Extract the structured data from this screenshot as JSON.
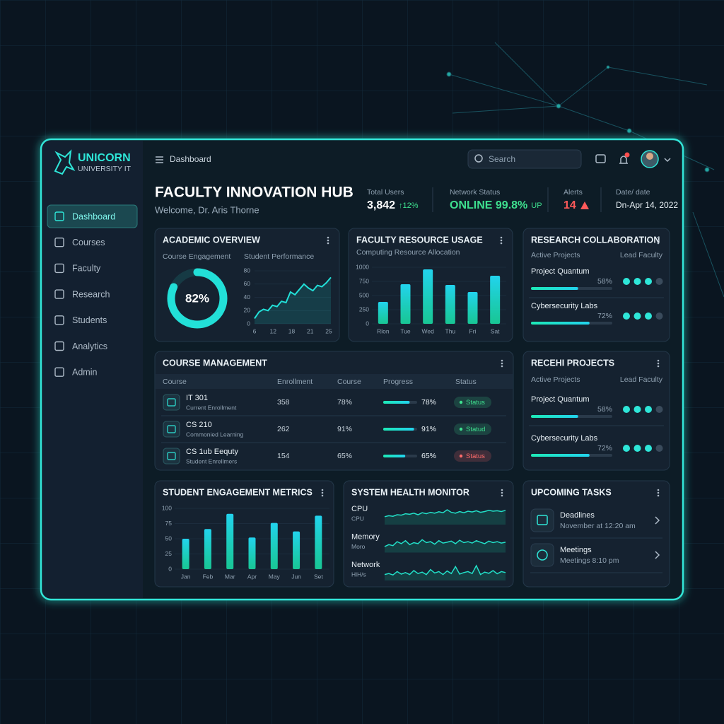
{
  "brand": {
    "name": "UNICORN",
    "subtitle": "UNIVERSITY IT"
  },
  "nav": {
    "items": [
      "Dashboard",
      "Courses",
      "Faculty",
      "Research",
      "Students",
      "Analytics",
      "Admin"
    ],
    "active": "Dashboard"
  },
  "topbar": {
    "breadcrumb": "Dashboard",
    "search_placeholder": "Search"
  },
  "header": {
    "title": "FACULTY INNOVATION HUB",
    "welcome": "Welcome, Dr. Aris Thorne"
  },
  "stats": [
    {
      "label": "Total Users",
      "value": "3,842",
      "change": "↑12%",
      "value_color": "#ffffff",
      "change_color": "#3ee08f"
    },
    {
      "label": "Network Status",
      "value": "ONLINE 99.8%",
      "change": "UP",
      "value_color": "#3ee08f",
      "change_color": "#3ee08f"
    },
    {
      "label": "Alerts",
      "value": "14",
      "value_color": "#ff5a5a"
    },
    {
      "label": "Date/ date",
      "value": "Dn-Apr 14, 2022",
      "value_color": "#e9f1f6"
    }
  ],
  "academic_overview": {
    "title": "ACADEMIC OVERVIEW",
    "engagement": {
      "type": "donut",
      "label": "Course Engagement",
      "value": 82,
      "value_label": "82%",
      "color": "#22e0d8"
    },
    "performance": {
      "type": "line",
      "label": "Student Performance",
      "categories": [
        "6",
        "12",
        "18",
        "21",
        "25"
      ],
      "values": [
        8,
        18,
        22,
        20,
        28,
        26,
        34,
        32,
        48,
        44,
        52,
        60,
        54,
        50,
        58,
        56,
        62,
        70
      ],
      "ylim": [
        0,
        80
      ],
      "yticks": [
        0,
        20,
        40,
        60,
        80
      ],
      "color": "#22e0d8"
    }
  },
  "faculty_resource": {
    "title": "FACULTY RESOURCE USAGE",
    "chart": {
      "type": "bar",
      "subtitle": "Computing Resource Allocation",
      "categories": [
        "Rlon",
        "Tue",
        "Wed",
        "Thu",
        "Fri",
        "Sat"
      ],
      "values": [
        387,
        700,
        962,
        687,
        562,
        850
      ],
      "ylim": [
        0,
        1000
      ],
      "yticks": [
        0,
        250,
        500,
        750,
        1000
      ],
      "color": "#22d3ee"
    }
  },
  "research": {
    "title": "RESEARCH COLLABORATION",
    "columns": [
      "Active Projects",
      "Lead Faculty"
    ],
    "items": [
      {
        "name": "Project Quantum",
        "progress": 58,
        "progress_label": "58%"
      },
      {
        "name": "Cybersecurity Labs",
        "progress": 72,
        "progress_label": "72%"
      }
    ]
  },
  "course_management": {
    "title": "COURSE MANAGEMENT",
    "columns": [
      "Course",
      "Enrollment",
      "Course",
      "Progress",
      "Status"
    ],
    "rows": [
      {
        "code": "IT 301",
        "desc": "Current Enrollment",
        "enrollment": "358",
        "course": "78%",
        "progress": 78,
        "progress_label": "78%",
        "status": "Status",
        "status_color": "#3ee08f"
      },
      {
        "code": "CS 210",
        "desc": "Commonied Learning",
        "enrollment": "262",
        "course": "91%",
        "progress": 91,
        "progress_label": "91%",
        "status": "Statud",
        "status_color": "#3ee08f"
      },
      {
        "code": "CS 1ub Eequty",
        "desc": "Student Enrellmers",
        "enrollment": "154",
        "course": "65%",
        "progress": 65,
        "progress_label": "65%",
        "status": "Status",
        "status_color": "#ff6b6b"
      }
    ]
  },
  "recent_projects": {
    "title": "RECEHI PROJECTS",
    "columns": [
      "Active Projects",
      "Lead Faculty"
    ],
    "items": [
      {
        "name": "Project Quantum",
        "progress": 58,
        "progress_label": "58%"
      },
      {
        "name": "Cybersecurity Labs",
        "progress": 72,
        "progress_label": "72%"
      }
    ]
  },
  "student_engagement": {
    "title": "STUDENT ENGAGEMENT METRICS",
    "chart": {
      "type": "bar",
      "categories": [
        "Jan",
        "Feb",
        "Mar",
        "Apr",
        "May",
        "Jun",
        "Set"
      ],
      "values": [
        50,
        66,
        91,
        52,
        76,
        62,
        88
      ],
      "ylim": [
        0,
        100
      ],
      "yticks": [
        0,
        25,
        50,
        75,
        100
      ],
      "color": "#22d3ee"
    }
  },
  "system_health": {
    "title": "SYSTEM HEALTH MONITOR",
    "rows": [
      {
        "name": "CPU",
        "sub": "CPU",
        "type": "sparkline",
        "values": [
          40,
          45,
          42,
          50,
          48,
          55,
          52,
          58,
          50,
          60,
          55,
          62,
          58,
          65,
          60,
          75,
          62,
          58,
          66,
          60,
          68,
          64,
          70,
          62,
          66,
          72,
          68,
          70,
          66,
          72
        ]
      },
      {
        "name": "Memory",
        "sub": "Moro",
        "type": "sparkline",
        "values": [
          30,
          40,
          35,
          55,
          45,
          60,
          40,
          50,
          45,
          65,
          50,
          55,
          42,
          60,
          48,
          52,
          58,
          45,
          62,
          50,
          55,
          48,
          60,
          52,
          45,
          58,
          50,
          55,
          48,
          52
        ]
      },
      {
        "name": "Network",
        "sub": "HlH/s",
        "type": "sparkline",
        "values": [
          30,
          35,
          28,
          45,
          32,
          40,
          30,
          50,
          35,
          42,
          30,
          55,
          38,
          45,
          30,
          48,
          35,
          70,
          32,
          40,
          45,
          35,
          75,
          30,
          42,
          36,
          50,
          34,
          45,
          40
        ]
      }
    ]
  },
  "upcoming_tasks": {
    "title": "UPCOMING TASKS",
    "items": [
      {
        "name": "Deadlines",
        "detail": "November at 12:20 am"
      },
      {
        "name": "Meetings",
        "detail": "Meetings 8:10 pm"
      }
    ]
  }
}
